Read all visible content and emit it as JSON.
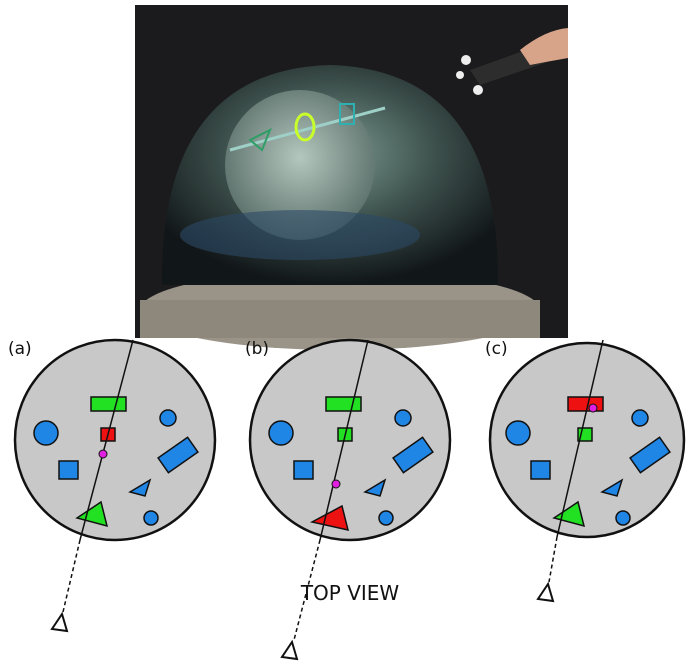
{
  "panels": [
    {
      "label": "(a)"
    },
    {
      "label": "(b)"
    },
    {
      "label": "(c)"
    }
  ],
  "caption": "TOP VIEW"
}
